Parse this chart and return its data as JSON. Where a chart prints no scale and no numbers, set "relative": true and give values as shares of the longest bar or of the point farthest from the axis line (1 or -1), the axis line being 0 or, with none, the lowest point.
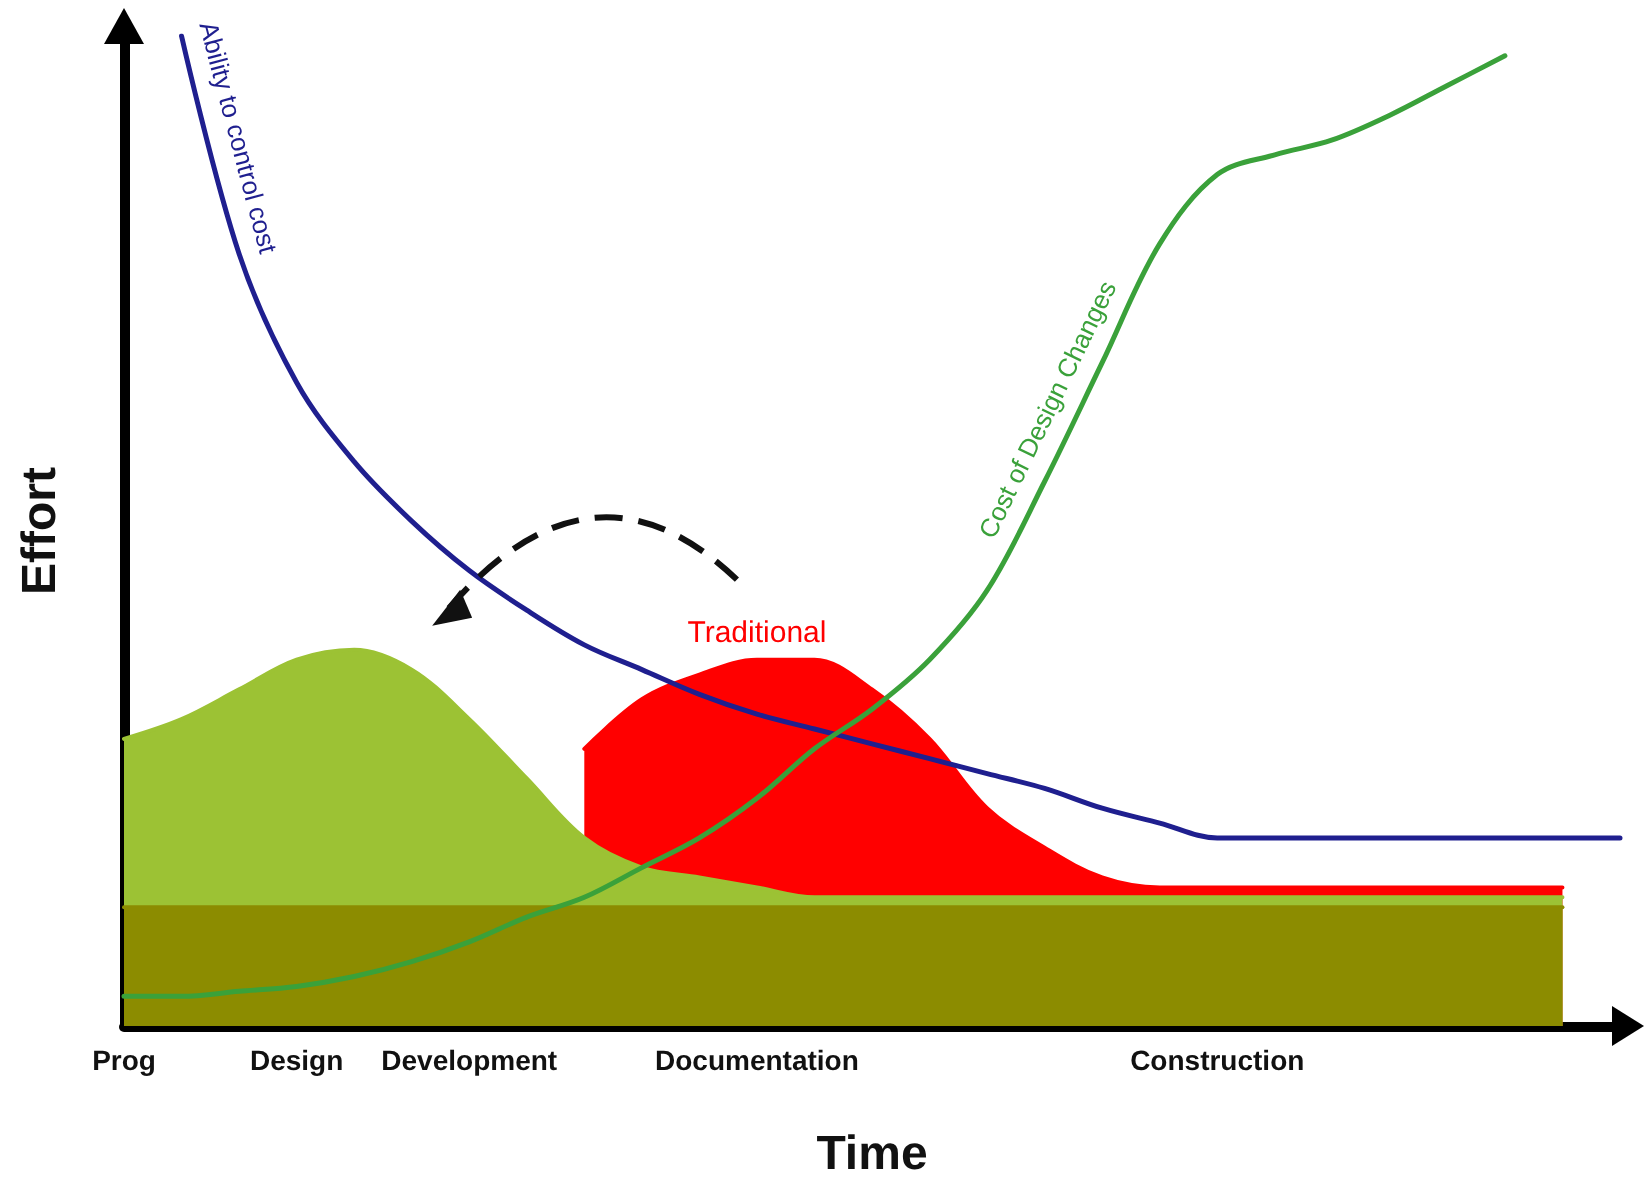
{
  "chart_data": {
    "type": "line",
    "relative": true,
    "xlabel": "Time",
    "ylabel": "Effort",
    "categories": [
      "Prog",
      null,
      null,
      "Design",
      null,
      null,
      "Development",
      null,
      null,
      null,
      null,
      "Documentation",
      null,
      null,
      null,
      null,
      null,
      null,
      null,
      "Construction",
      null,
      null,
      null,
      null,
      null,
      null,
      null
    ],
    "tick_labels": "x",
    "legend": false,
    "grid": false,
    "series": [
      {
        "name": "Traditional",
        "type": "area",
        "color": "#ff0000",
        "values": [
          null,
          null,
          null,
          null,
          null,
          null,
          null,
          null,
          0.28,
          0.33,
          0.355,
          0.37,
          0.37,
          0.34,
          0.29,
          0.22,
          0.18,
          0.15,
          0.14,
          0.14,
          0.14,
          0.14,
          0.14,
          0.14,
          0.14,
          0.14,
          null
        ]
      },
      {
        "type": "area",
        "color": "#9cc234",
        "values": [
          0.29,
          0.31,
          0.34,
          0.37,
          0.38,
          0.36,
          0.31,
          0.25,
          0.19,
          0.16,
          0.15,
          0.14,
          0.13,
          0.13,
          0.13,
          0.13,
          0.13,
          0.13,
          0.13,
          0.13,
          0.13,
          0.13,
          0.13,
          0.13,
          0.13,
          0.13,
          null
        ]
      },
      {
        "type": "area",
        "color": "#8c8c00",
        "values": [
          0.12,
          0.12,
          0.12,
          0.12,
          0.12,
          0.12,
          0.12,
          0.12,
          0.12,
          0.12,
          0.12,
          0.12,
          0.12,
          0.12,
          0.12,
          0.12,
          0.12,
          0.12,
          0.12,
          0.12,
          0.12,
          0.12,
          0.12,
          0.12,
          0.12,
          0.12,
          null
        ]
      },
      {
        "name": "Ability to control cost",
        "color": "#1f1f8f",
        "values": [
          null,
          1,
          0.78,
          0.65,
          0.57,
          0.51,
          0.46,
          0.42,
          0.385,
          0.36,
          0.335,
          0.315,
          0.3,
          0.285,
          0.27,
          0.255,
          0.24,
          0.22,
          0.205,
          0.19,
          0.19,
          0.19,
          0.19,
          0.19,
          0.19,
          0.19,
          0.19
        ]
      },
      {
        "name": "Cost of Design Changes",
        "color": "#3aa13a",
        "values": [
          0.03,
          0.03,
          0.035,
          0.04,
          0.05,
          0.065,
          0.085,
          0.11,
          0.13,
          0.16,
          0.19,
          0.23,
          0.28,
          0.32,
          0.37,
          0.44,
          0.55,
          0.67,
          0.79,
          0.86,
          0.88,
          0.895,
          0.92,
          0.95,
          0.98,
          null,
          null
        ]
      }
    ]
  }
}
